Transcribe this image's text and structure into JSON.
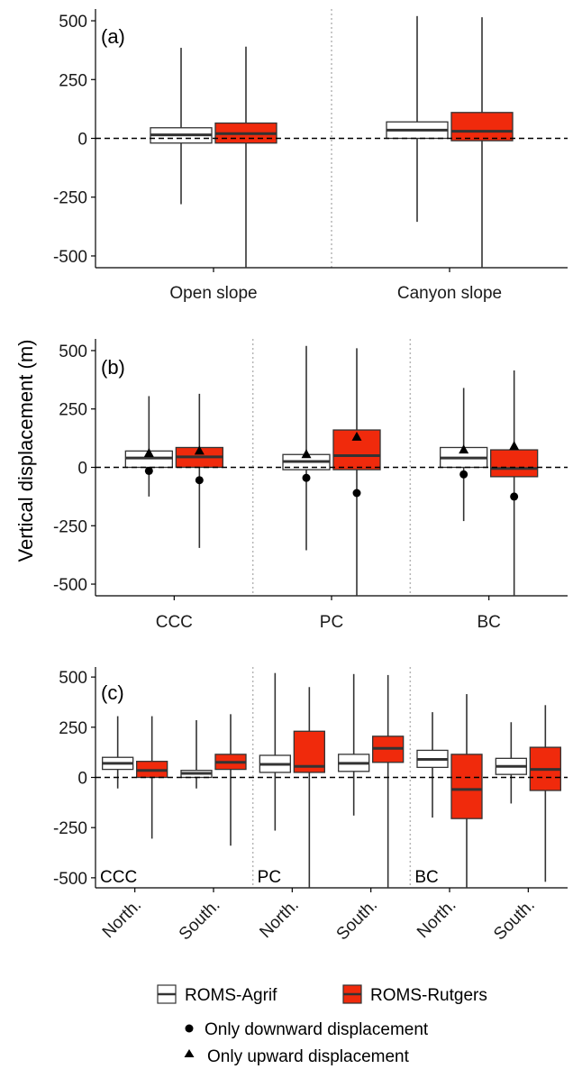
{
  "figure": {
    "ylabel": "Vertical displacement (m)",
    "colors": {
      "agrif": "#ffffff",
      "rutgers": "#f02a0c",
      "stroke": "#333333",
      "sep": "#b5b5b5"
    }
  },
  "legend": {
    "agrif": "ROMS-Agrif",
    "rutgers": "ROMS-Rutgers",
    "down": "Only downward displacement",
    "up": "Only upward displacement"
  },
  "chart_data": [
    {
      "type": "box",
      "panel": "(a)",
      "ylim": [
        -550,
        550
      ],
      "yticks": [
        500,
        250,
        0,
        -250,
        -500
      ],
      "categories": [
        "Open slope",
        "Canyon slope"
      ],
      "group_labels": [],
      "series": [
        {
          "name": "ROMS-Agrif",
          "boxes": [
            {
              "min": -280,
              "q1": -20,
              "median": 15,
              "q3": 45,
              "max": 385
            },
            {
              "min": -355,
              "q1": 0,
              "median": 35,
              "q3": 70,
              "max": 520
            }
          ]
        },
        {
          "name": "ROMS-Rutgers",
          "boxes": [
            {
              "min": -550,
              "q1": -20,
              "median": 20,
              "q3": 65,
              "max": 390
            },
            {
              "min": -550,
              "q1": -10,
              "median": 30,
              "q3": 110,
              "max": 515
            }
          ]
        }
      ],
      "markers": []
    },
    {
      "type": "box",
      "panel": "(b)",
      "ylim": [
        -550,
        550
      ],
      "yticks": [
        500,
        250,
        0,
        -250,
        -500
      ],
      "categories": [
        "CCC",
        "PC",
        "BC"
      ],
      "group_labels": [],
      "series": [
        {
          "name": "ROMS-Agrif",
          "boxes": [
            {
              "min": -125,
              "q1": 0,
              "median": 40,
              "q3": 70,
              "max": 305
            },
            {
              "min": -355,
              "q1": -10,
              "median": 25,
              "q3": 55,
              "max": 520
            },
            {
              "min": -230,
              "q1": 0,
              "median": 40,
              "q3": 85,
              "max": 340
            }
          ]
        },
        {
          "name": "ROMS-Rutgers",
          "boxes": [
            {
              "min": -345,
              "q1": 0,
              "median": 45,
              "q3": 85,
              "max": 315
            },
            {
              "min": -550,
              "q1": -10,
              "median": 50,
              "q3": 160,
              "max": 510
            },
            {
              "min": -550,
              "q1": -40,
              "median": -5,
              "q3": 75,
              "max": 415
            }
          ]
        }
      ],
      "markers": [
        {
          "series": 0,
          "cat": 0,
          "up": 60,
          "down": -15
        },
        {
          "series": 1,
          "cat": 0,
          "up": 70,
          "down": -55
        },
        {
          "series": 0,
          "cat": 1,
          "up": 55,
          "down": -45
        },
        {
          "series": 1,
          "cat": 1,
          "up": 130,
          "down": -110
        },
        {
          "series": 0,
          "cat": 2,
          "up": 75,
          "down": -30
        },
        {
          "series": 1,
          "cat": 2,
          "up": 90,
          "down": -125
        }
      ]
    },
    {
      "type": "box",
      "panel": "(c)",
      "ylim": [
        -550,
        550
      ],
      "yticks": [
        500,
        250,
        0,
        -250,
        -500
      ],
      "categories": [
        "North.",
        "South.",
        "North.",
        "South.",
        "North.",
        "South."
      ],
      "group_labels": [
        "CCC",
        "PC",
        "BC"
      ],
      "series": [
        {
          "name": "ROMS-Agrif",
          "boxes": [
            {
              "min": -55,
              "q1": 40,
              "median": 70,
              "q3": 100,
              "max": 305
            },
            {
              "min": -55,
              "q1": 0,
              "median": 20,
              "q3": 35,
              "max": 285
            },
            {
              "min": -265,
              "q1": 25,
              "median": 65,
              "q3": 110,
              "max": 520
            },
            {
              "min": -190,
              "q1": 30,
              "median": 70,
              "q3": 115,
              "max": 515
            },
            {
              "min": -200,
              "q1": 50,
              "median": 90,
              "q3": 135,
              "max": 325
            },
            {
              "min": -130,
              "q1": 15,
              "median": 55,
              "q3": 95,
              "max": 275
            }
          ]
        },
        {
          "name": "ROMS-Rutgers",
          "boxes": [
            {
              "min": -305,
              "q1": 0,
              "median": 35,
              "q3": 80,
              "max": 305
            },
            {
              "min": -340,
              "q1": 40,
              "median": 75,
              "q3": 115,
              "max": 315
            },
            {
              "min": -550,
              "q1": 25,
              "median": 55,
              "q3": 230,
              "max": 450
            },
            {
              "min": -550,
              "q1": 75,
              "median": 145,
              "q3": 205,
              "max": 510
            },
            {
              "min": -550,
              "q1": -205,
              "median": -60,
              "q3": 115,
              "max": 415
            },
            {
              "min": -520,
              "q1": -65,
              "median": 40,
              "q3": 150,
              "max": 360
            }
          ]
        }
      ],
      "markers": []
    }
  ]
}
